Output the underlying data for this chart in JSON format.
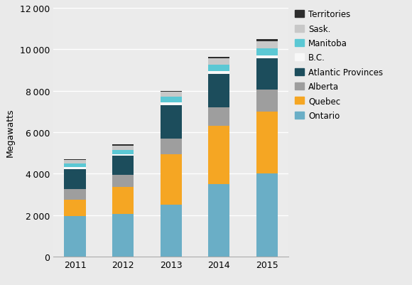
{
  "years": [
    "2011",
    "2012",
    "2013",
    "2014",
    "2015"
  ],
  "series": {
    "Ontario": [
      1950,
      2050,
      2500,
      3500,
      4000
    ],
    "Quebec": [
      800,
      1300,
      2450,
      2800,
      3000
    ],
    "Alberta": [
      500,
      600,
      750,
      900,
      1050
    ],
    "Atlantic Provinces": [
      950,
      900,
      1600,
      1600,
      1500
    ],
    "B.C.": [
      100,
      100,
      150,
      150,
      150
    ],
    "Manitoba": [
      200,
      200,
      250,
      300,
      350
    ],
    "Sask.": [
      150,
      200,
      250,
      300,
      350
    ],
    "Territories": [
      50,
      50,
      50,
      100,
      100
    ]
  },
  "colors": {
    "Ontario": "#6aaec6",
    "Quebec": "#f5a623",
    "Alberta": "#9e9e9e",
    "Atlantic Provinces": "#1c4d5c",
    "B.C.": "#f8f8f8",
    "Manitoba": "#5bc8d4",
    "Sask.": "#c8c8c8",
    "Territories": "#2d2d2d"
  },
  "ylabel": "Megawatts",
  "ylim": [
    0,
    12000
  ],
  "yticks": [
    0,
    2000,
    4000,
    6000,
    8000,
    10000,
    12000
  ],
  "bg_color": "#eaeaea",
  "plot_bg": "#ebebeb",
  "grid_color": "#ffffff",
  "legend_order": [
    "Territories",
    "Sask.",
    "Manitoba",
    "B.C.",
    "Atlantic Provinces",
    "Alberta",
    "Quebec",
    "Ontario"
  ]
}
